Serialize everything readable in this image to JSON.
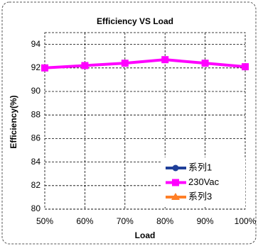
{
  "chart_data": {
    "type": "line",
    "title": "Efficiency VS  Load",
    "x_label": "Load",
    "y_label": "Efficiency(%)",
    "categories": [
      "50%",
      "60%",
      "70%",
      "80%",
      "90%",
      "100%"
    ],
    "series": [
      {
        "name": "系列1",
        "color": "#1f3f99",
        "marker": "circle",
        "values": [
          null,
          null,
          null,
          null,
          null,
          null
        ]
      },
      {
        "name": "230Vac",
        "color": "#ff00ff",
        "marker": "square",
        "values": [
          92.0,
          92.2,
          92.4,
          92.7,
          92.4,
          92.1
        ]
      },
      {
        "name": "系列3",
        "color": "#ff7f27",
        "marker": "triangle",
        "values": [
          null,
          null,
          null,
          null,
          null,
          null
        ]
      }
    ],
    "ylim": [
      80,
      95
    ],
    "yticks": [
      80,
      82,
      84,
      86,
      88,
      90,
      92,
      94
    ],
    "grid": true,
    "legend": "bottom-right"
  }
}
